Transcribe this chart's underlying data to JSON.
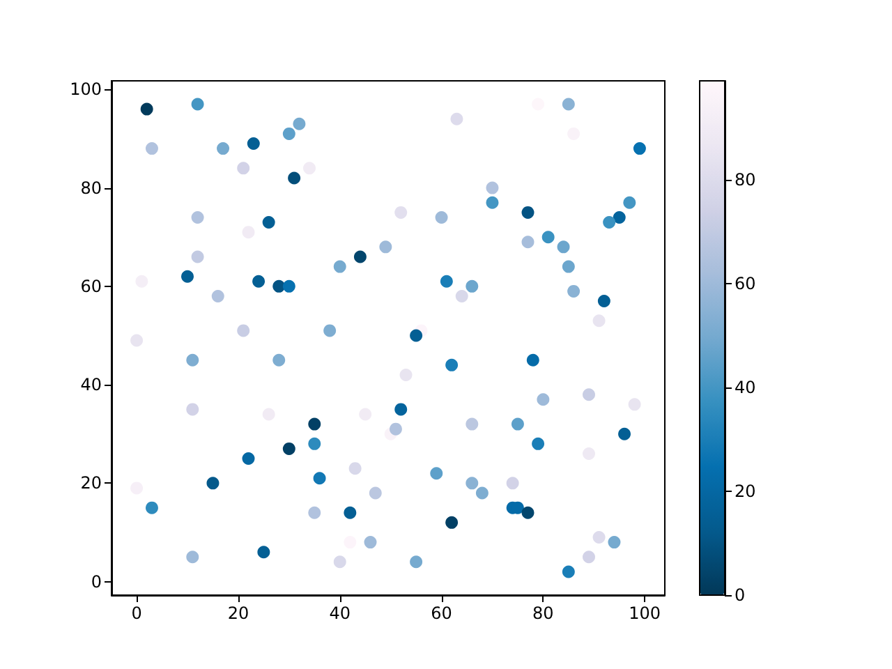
{
  "chart_data": {
    "type": "scatter",
    "marker": "circle",
    "x": [
      2,
      12,
      3,
      17,
      23,
      30,
      32,
      21,
      34,
      31,
      12,
      26,
      22,
      44,
      49,
      12,
      40,
      1,
      10,
      24,
      28,
      30,
      16,
      21,
      38,
      79,
      85,
      63,
      86,
      99,
      70,
      70,
      77,
      97,
      95,
      93,
      52,
      60,
      77,
      81,
      84,
      85,
      86,
      92,
      91,
      61,
      66,
      64,
      56,
      55,
      0,
      11,
      28,
      11,
      26,
      35,
      45,
      50,
      51,
      35,
      30,
      22,
      43,
      36,
      0,
      15,
      47,
      3,
      35,
      42,
      42,
      46,
      40,
      11,
      25,
      53,
      62,
      78,
      52,
      66,
      75,
      80,
      89,
      98,
      96,
      79,
      89,
      59,
      66,
      68,
      74,
      74,
      75,
      77,
      62,
      91,
      94,
      89,
      55,
      85
    ],
    "values": [
      96,
      97,
      88,
      88,
      89,
      91,
      93,
      84,
      84,
      82,
      74,
      73,
      71,
      66,
      68,
      66,
      64,
      61,
      62,
      61,
      60,
      60,
      58,
      51,
      51,
      97,
      97,
      94,
      91,
      88,
      80,
      77,
      75,
      77,
      74,
      73,
      75,
      74,
      69,
      70,
      68,
      64,
      59,
      57,
      53,
      61,
      60,
      58,
      51,
      50,
      49,
      45,
      45,
      35,
      34,
      32,
      34,
      30,
      31,
      28,
      27,
      25,
      23,
      21,
      19,
      20,
      18,
      15,
      14,
      14,
      8,
      8,
      4,
      5,
      6,
      42,
      44,
      45,
      35,
      32,
      32,
      37,
      38,
      36,
      30,
      28,
      26,
      22,
      20,
      18,
      20,
      15,
      15,
      14,
      12,
      9,
      8,
      5,
      4,
      2
    ],
    "cvalues": [
      1,
      40,
      65,
      50,
      15,
      45,
      50,
      75,
      90,
      8,
      65,
      15,
      90,
      5,
      60,
      70,
      50,
      92,
      15,
      15,
      10,
      25,
      65,
      72,
      52,
      98,
      55,
      80,
      95,
      25,
      65,
      40,
      10,
      40,
      18,
      38,
      82,
      60,
      62,
      38,
      48,
      48,
      55,
      15,
      85,
      30,
      48,
      78,
      97,
      15,
      85,
      52,
      52,
      75,
      90,
      3,
      90,
      95,
      65,
      35,
      3,
      20,
      78,
      28,
      93,
      12,
      68,
      35,
      65,
      15,
      97,
      60,
      78,
      60,
      15,
      85,
      30,
      22,
      18,
      68,
      45,
      60,
      72,
      85,
      15,
      30,
      88,
      45,
      55,
      52,
      75,
      22,
      22,
      5,
      3,
      80,
      50,
      75,
      50,
      30
    ],
    "xlim": [
      -4.95,
      103.95
    ],
    "ylim": [
      -2.75,
      101.75
    ],
    "xticks": [
      0,
      20,
      40,
      60,
      80,
      100
    ],
    "yticks": [
      0,
      20,
      40,
      60,
      80,
      100
    ],
    "clim": [
      0,
      99
    ],
    "cticks": [
      0,
      20,
      40,
      60,
      80
    ]
  }
}
